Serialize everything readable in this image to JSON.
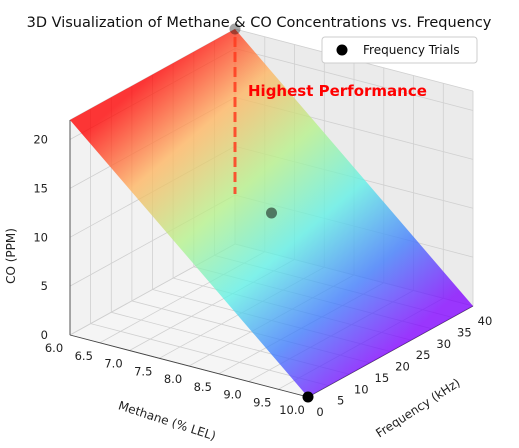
{
  "chart_data": {
    "type": "surface3d",
    "title": "3D Visualization of Methane & CO Concentrations vs. Frequency",
    "xlabel": "Methane (% LEL)",
    "ylabel": "Frequency (kHz)",
    "zlabel": "CO (PPM)",
    "xlim": [
      6.0,
      10.0
    ],
    "ylim": [
      0,
      40
    ],
    "zlim": [
      0,
      22
    ],
    "x_ticks": [
      "6.0",
      "6.5",
      "7.0",
      "7.5",
      "8.0",
      "8.5",
      "9.0",
      "9.5",
      "10.0"
    ],
    "y_ticks": [
      "0",
      "5",
      "10",
      "15",
      "20",
      "25",
      "30",
      "35",
      "40"
    ],
    "z_ticks": [
      "0",
      "5",
      "10",
      "15",
      "20"
    ],
    "surface": {
      "colormap": "rainbow",
      "description_values": {
        "z_at_methane_6": 22,
        "z_at_methane_10": 0
      }
    },
    "scatter": {
      "name": "Frequency Trials",
      "points": [
        {
          "methane": 10.0,
          "frequency": 0,
          "co": 0
        },
        {
          "methane": 8.0,
          "frequency": 20,
          "co": 11
        },
        {
          "methane": 6.0,
          "frequency": 40,
          "co": 22
        }
      ],
      "color": "#000000"
    },
    "annotation": {
      "text": "Highest Performance",
      "color": "#ff0000"
    },
    "legend": {
      "placement": "top-right",
      "entries": [
        "Frequency Trials"
      ]
    },
    "grid": true
  }
}
